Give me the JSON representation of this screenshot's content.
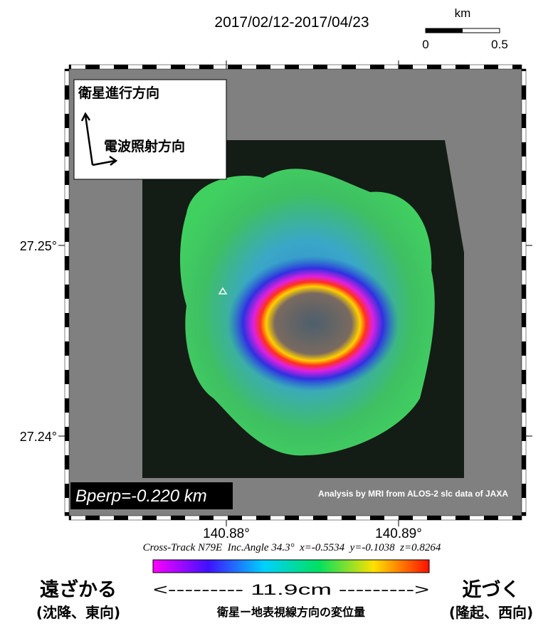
{
  "title": "2017/02/12-2017/04/23",
  "scale_bar": {
    "unit": "km",
    "labels": [
      "0",
      "0.5"
    ]
  },
  "direction_box": {
    "flight": "衛星進行方向",
    "look": "電波照射方向"
  },
  "lat_labels": [
    "27.25°",
    "27.24°"
  ],
  "lon_labels": [
    "140.88°",
    "140.89°"
  ],
  "baseline": "Bperp=-0.220 km",
  "credit": "Analysis by MRI from ALOS-2 slc data of JAXA",
  "geometry": "Cross-Track N79E  Inc.Angle 34.3°  x=-0.5534  y=-0.1038  z=0.8264",
  "colorbar": {
    "cycle": "<--------- 11.9cm --------->",
    "caption": "衛星ー地表視線方向の変位量",
    "left": "遠ざかる",
    "left_sub": "(沈降、東向)",
    "right": "近づく",
    "right_sub": "(隆起、西向)"
  }
}
